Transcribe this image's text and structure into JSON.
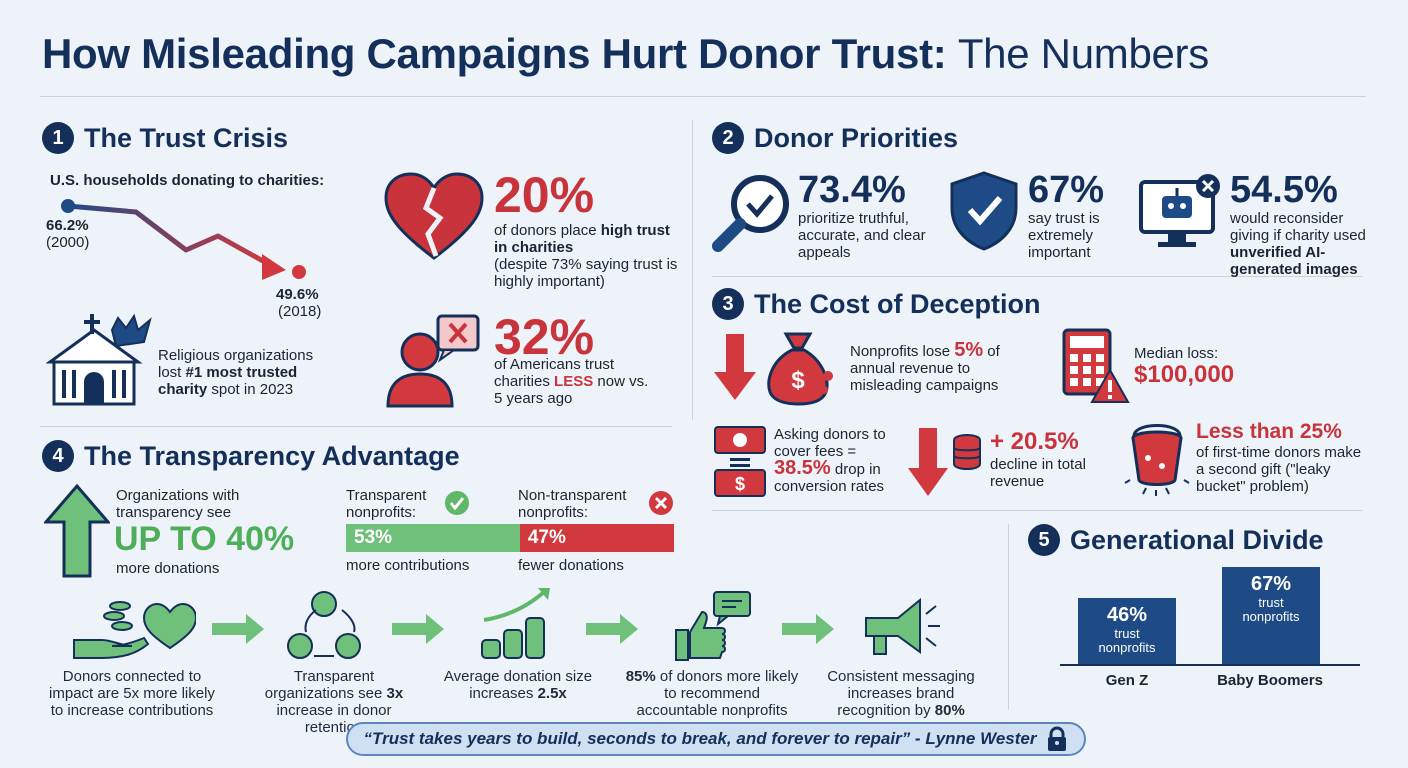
{
  "title": {
    "main": "How Misleading Campaigns Hurt Donor Trust:",
    "light": "The Numbers"
  },
  "colors": {
    "navy": "#14305a",
    "red": "#c9333b",
    "green": "#4fae5a",
    "background": "#eef3f9"
  },
  "s1": {
    "num": "1",
    "title": "The Trust Crisis",
    "line_label": "U.S. households donating to charities:",
    "chart_data": {
      "type": "line",
      "x": [
        "2000",
        "2018"
      ],
      "values": [
        66.2,
        49.6
      ],
      "points": [
        {
          "value": "66.2%",
          "year": "(2000)"
        },
        {
          "value": "49.6%",
          "year": "(2018)"
        }
      ]
    },
    "religious": {
      "pre": "Religious organizations lost ",
      "bold": "#1 most trusted charity",
      "post": " spot in 2023"
    },
    "stat1": {
      "pct": "20%",
      "pre": "of donors place ",
      "bold": "high trust in charities",
      "note": "(despite 73% saying trust is highly important)"
    },
    "stat2": {
      "pct": "32%",
      "pre": "of Americans trust charities ",
      "red": "LESS",
      "post": " now vs. 5 years ago"
    }
  },
  "s2": {
    "num": "2",
    "title": "Donor Priorities",
    "items": [
      {
        "pct": "73.4%",
        "text": "prioritize truthful, accurate, and clear appeals",
        "icon": "magnifier-check-icon"
      },
      {
        "pct": "67%",
        "text": "say trust is extremely important",
        "icon": "shield-check-icon"
      },
      {
        "pct": "54.5%",
        "pre": "would reconsider giving if charity used ",
        "bold": "unverified AI-generated images",
        "icon": "robot-monitor-icon"
      }
    ]
  },
  "s3": {
    "num": "3",
    "title": "The Cost of Deception",
    "revenue": {
      "pre": "Nonprofits lose ",
      "red": "5%",
      "post": " of annual revenue to misleading campaigns"
    },
    "median": {
      "label": "Median loss:",
      "value": "$100,000"
    },
    "fees": {
      "pre": "Asking donors to cover fees = ",
      "red": "38.5%",
      "post": " drop in conversion rates"
    },
    "decline": {
      "pct": "+ 20.5%",
      "text": "decline in total revenue"
    },
    "leaky": {
      "red": "Less than 25%",
      "text": "of first-time donors make a second gift (\"leaky bucket\" problem)"
    }
  },
  "s4": {
    "num": "4",
    "title": "The Transparency Advantage",
    "advantage": {
      "pre": "Organizations with transparency see",
      "big": "UP TO 40%",
      "post": "more donations"
    },
    "transparent": {
      "label": "Transparent nonprofits:",
      "value": "53%",
      "caption": "more contributions"
    },
    "nontransparent": {
      "label": "Non-transparent nonprofits:",
      "value": "47%",
      "caption": "fewer donations"
    },
    "flow": [
      {
        "text": "Donors connected to impact are 5x more likely to increase contributions"
      },
      {
        "pre": "Transparent organizations see ",
        "bold": "3x",
        "post": " increase in donor retention"
      },
      {
        "pre": "Average donation size increases ",
        "bold": "2.5x"
      },
      {
        "bold": "85%",
        "post": " of donors more likely to recommend accountable nonprofits"
      },
      {
        "pre": "Consistent messaging increases brand recognition by ",
        "bold": "80%"
      }
    ]
  },
  "s5": {
    "num": "5",
    "title": "Generational Divide",
    "chart_data": {
      "type": "bar",
      "categories": [
        "Gen Z",
        "Baby Boomers"
      ],
      "values": [
        46,
        67
      ],
      "bars": [
        {
          "pct": "46%",
          "sub": "trust nonprofits"
        },
        {
          "pct": "67%",
          "sub": "trust nonprofits"
        }
      ]
    }
  },
  "quote": "“Trust takes years to build, seconds to break, and forever to repair” - Lynne Wester"
}
